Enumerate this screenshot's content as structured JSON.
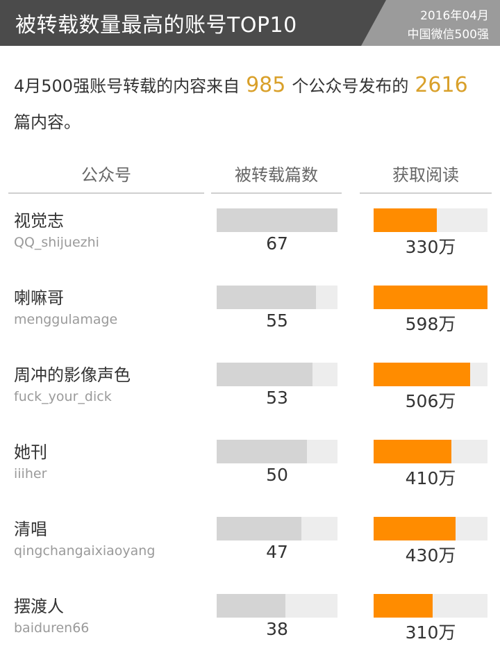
{
  "header": {
    "title": "被转载数量最高的账号TOP10",
    "date": "2016年04月",
    "source": "中国微信500强"
  },
  "summary": {
    "prefix": "4月500强账号转载的内容来自",
    "accounts_count": "985",
    "middle": "个公众号发布的",
    "articles_count": "2616",
    "suffix": "篇内容。"
  },
  "columns": {
    "account": "公众号",
    "reposted": "被转载篇数",
    "reads": "获取阅读"
  },
  "colors": {
    "header_dark": "#4b4b4b",
    "header_light": "#9b9b9b",
    "highlight": "#d9a02a",
    "grey_bar": "#d4d4d4",
    "orange_bar": "#ff8c00",
    "track": "#ededed"
  },
  "chart_data": {
    "type": "bar",
    "categories": [
      "视觉志",
      "喇嘛哥",
      "周冲的影像声色",
      "她刊",
      "清唱",
      "摆渡人"
    ],
    "series": [
      {
        "name": "被转载篇数",
        "values": [
          67,
          55,
          53,
          50,
          47,
          38
        ]
      },
      {
        "name": "获取阅读",
        "values": [
          330,
          598,
          506,
          410,
          430,
          310
        ]
      }
    ],
    "xlim_count": [
      0,
      67
    ],
    "xlim_reads": [
      0,
      598
    ]
  },
  "rows": [
    {
      "name": "视觉志",
      "account": "QQ_shijuezhi",
      "count": 67,
      "count_label": "67",
      "reads": 330,
      "reads_label": "330万"
    },
    {
      "name": "喇嘛哥",
      "account": "menggulamage",
      "count": 55,
      "count_label": "55",
      "reads": 598,
      "reads_label": "598万"
    },
    {
      "name": "周冲的影像声色",
      "account": "fuck_your_dick",
      "count": 53,
      "count_label": "53",
      "reads": 506,
      "reads_label": "506万"
    },
    {
      "name": "她刊",
      "account": "iiiher",
      "count": 50,
      "count_label": "50",
      "reads": 410,
      "reads_label": "410万"
    },
    {
      "name": "清唱",
      "account": "qingchangaixiaoyang",
      "count": 47,
      "count_label": "47",
      "reads": 430,
      "reads_label": "430万"
    },
    {
      "name": "摆渡人",
      "account": "baiduren66",
      "count": 38,
      "count_label": "38",
      "reads": 310,
      "reads_label": "310万"
    }
  ]
}
